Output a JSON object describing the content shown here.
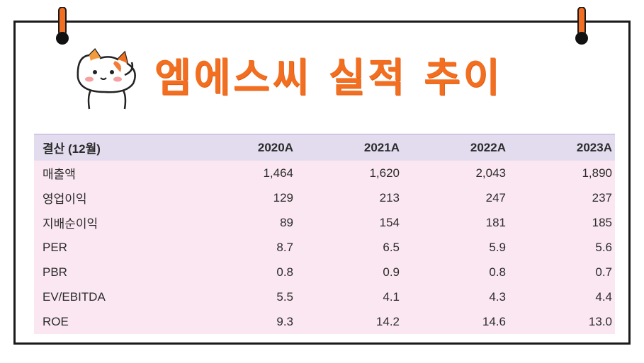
{
  "title": "엠에스씨 실적 추이",
  "colors": {
    "accent": "#f26f21",
    "pin": "#f26f21",
    "header_bg": "#e3dcef",
    "row_bg": "#fbe7f2"
  },
  "icons": {
    "pins": "pushpin-icon",
    "mascot": "cat-mascot-icon"
  },
  "table": {
    "headers": [
      "결산 (12월)",
      "2020A",
      "2021A",
      "2022A",
      "2023A"
    ],
    "rows": [
      [
        "매출액",
        "1,464",
        "1,620",
        "2,043",
        "1,890"
      ],
      [
        "영업이익",
        "129",
        "213",
        "247",
        "237"
      ],
      [
        "지배순이익",
        "89",
        "154",
        "181",
        "185"
      ],
      [
        "PER",
        "8.7",
        "6.5",
        "5.9",
        "5.6"
      ],
      [
        "PBR",
        "0.8",
        "0.9",
        "0.8",
        "0.7"
      ],
      [
        "EV/EBITDA",
        "5.5",
        "4.1",
        "4.3",
        "4.4"
      ],
      [
        "ROE",
        "9.3",
        "14.2",
        "14.6",
        "13.0"
      ]
    ]
  }
}
